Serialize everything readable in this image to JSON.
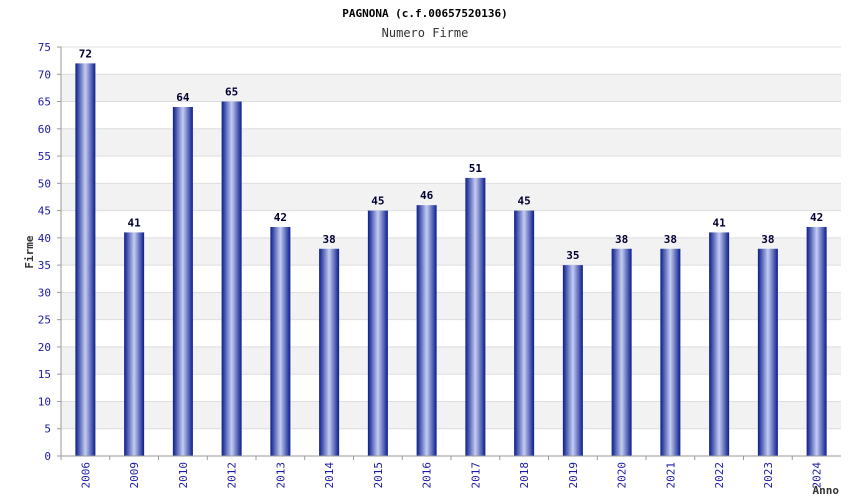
{
  "chart_data": {
    "type": "bar",
    "title": "PAGNONA (c.f.00657520136)",
    "subtitle": "Numero Firme",
    "xlabel": "Anno",
    "ylabel": "Firme",
    "categories": [
      "2006",
      "2009",
      "2010",
      "2012",
      "2013",
      "2014",
      "2015",
      "2016",
      "2017",
      "2018",
      "2019",
      "2020",
      "2021",
      "2022",
      "2023",
      "2024"
    ],
    "values": [
      72,
      41,
      64,
      65,
      42,
      38,
      45,
      46,
      51,
      45,
      35,
      38,
      38,
      41,
      38,
      42
    ],
    "ylim": [
      0,
      75
    ],
    "yticks": [
      0,
      5,
      10,
      15,
      20,
      25,
      30,
      35,
      40,
      45,
      50,
      55,
      60,
      65,
      70,
      75
    ],
    "grid": true,
    "data_labels": true,
    "colors": {
      "bar_dark": "#0a1c8c",
      "bar_light": "#c4cdf2",
      "tick_text": "#1a1aa6",
      "band": "#f2f2f2",
      "grid": "#dddddd",
      "axis": "#999999"
    }
  }
}
